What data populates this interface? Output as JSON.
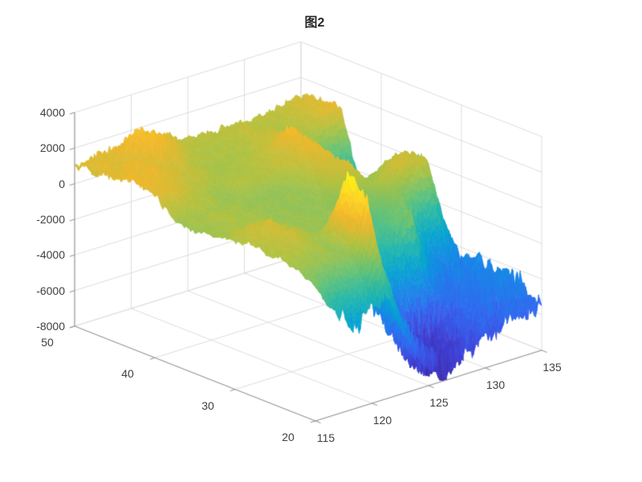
{
  "title": "图2",
  "chart_data": {
    "type": "surface",
    "title": "图2",
    "view": {
      "azimuth": -37.5,
      "elevation": 30
    },
    "x_range": [
      115,
      135
    ],
    "y_range": [
      20,
      50
    ],
    "z_range": [
      -8000,
      4000
    ],
    "x_ticks": [
      115,
      120,
      125,
      130,
      135
    ],
    "y_ticks": [
      20,
      30,
      40,
      50
    ],
    "z_ticks": [
      -8000,
      -6000,
      -4000,
      -2000,
      0,
      2000,
      4000
    ],
    "colormap": "parula",
    "colormap_stops": [
      "#3e2aa8",
      "#4145d9",
      "#3468f0",
      "#1a87e8",
      "#06a3d2",
      "#24b7ad",
      "#65c377",
      "#b1c242",
      "#f0b82d",
      "#fed627",
      "#f7fb14"
    ],
    "color_limits": [
      -8000,
      3900
    ],
    "grid": true,
    "grid_color": "#dcdcdc",
    "axis_color": "#8f8f8f",
    "tick_label_color": "#404040",
    "background": "#ffffff",
    "z_layout": "rows = y values (front to back), columns = x values (left to right)",
    "x": [
      115,
      116.25,
      117.5,
      118.75,
      120,
      121.25,
      122.5,
      123.75,
      125,
      126.25,
      127.5,
      128.75,
      130,
      131.25,
      132.5,
      133.75,
      135
    ],
    "y": [
      20,
      22.5,
      25,
      27.5,
      30,
      32.5,
      35,
      37.5,
      40,
      42.5,
      45,
      47.5,
      50
    ],
    "z": [
      [
        -300,
        -1800,
        -2800,
        -3200,
        -2600,
        -2200,
        -3800,
        -5200,
        -6800,
        -7300,
        -7000,
        -6400,
        -6000,
        -5800,
        -5600,
        -5300,
        -5400
      ],
      [
        100,
        0,
        -100,
        -100,
        -200,
        3000,
        -1500,
        -4600,
        -6600,
        -7600,
        -7800,
        -6800,
        -6000,
        -5600,
        -5200,
        -4900,
        -4700
      ],
      [
        300,
        500,
        400,
        200,
        -80,
        3500,
        -2000,
        -4200,
        -5200,
        -6400,
        -7300,
        -7600,
        -6200,
        -5400,
        -5000,
        -4700,
        -4500
      ],
      [
        500,
        700,
        900,
        500,
        100,
        -80,
        -150,
        -900,
        -1800,
        -2400,
        -1200,
        -300,
        -3500,
        -5300,
        -5100,
        -4800,
        -4500
      ],
      [
        300,
        800,
        1000,
        400,
        60,
        -40,
        -70,
        -100,
        -150,
        -600,
        -1400,
        -700,
        -400,
        -2800,
        -4300,
        -4500,
        -4600
      ],
      [
        100,
        150,
        120,
        60,
        20,
        -30,
        -60,
        -80,
        -100,
        -130,
        -180,
        -250,
        500,
        1000,
        700,
        900,
        -3000
      ],
      [
        80,
        120,
        350,
        180,
        40,
        -40,
        -70,
        -90,
        -100,
        150,
        700,
        900,
        -200,
        300,
        800,
        600,
        300
      ],
      [
        60,
        90,
        150,
        100,
        -30,
        -50,
        -60,
        -70,
        -80,
        250,
        1000,
        1200,
        -1200,
        -2600,
        -3100,
        -3000,
        -2800
      ],
      [
        1300,
        1050,
        800,
        400,
        100,
        -40,
        250,
        300,
        450,
        650,
        1000,
        1500,
        -2300,
        -3300,
        -3500,
        -3400,
        -3200
      ],
      [
        1500,
        1350,
        1150,
        900,
        600,
        400,
        280,
        220,
        320,
        550,
        900,
        1800,
        700,
        400,
        -2600,
        -3300,
        -3200
      ],
      [
        1300,
        1300,
        1250,
        1050,
        950,
        700,
        280,
        200,
        250,
        350,
        500,
        700,
        650,
        450,
        350,
        1100,
        1300
      ],
      [
        1050,
        1150,
        1100,
        1200,
        1700,
        1500,
        850,
        450,
        280,
        280,
        400,
        550,
        450,
        280,
        500,
        900,
        1100
      ],
      [
        950,
        1050,
        1150,
        1400,
        1800,
        1700,
        1200,
        750,
        550,
        480,
        420,
        520,
        480,
        420,
        600,
        800,
        900
      ]
    ]
  }
}
